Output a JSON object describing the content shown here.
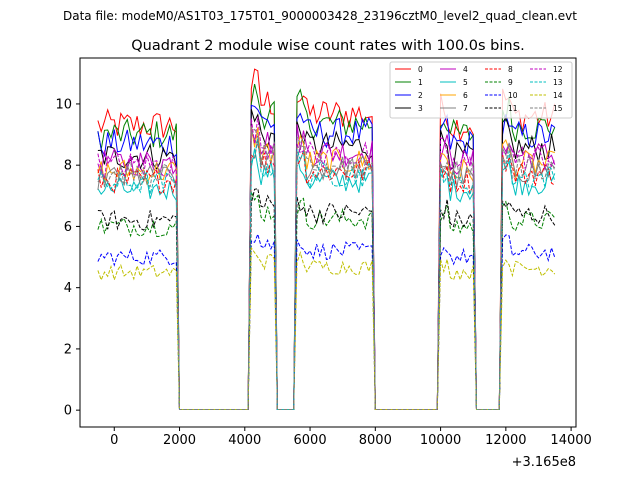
{
  "chart_data": {
    "type": "line",
    "suptitle": "Data file: modeM0/AS1T03_175T01_9000003428_23196cztM0_level2_quad_clean.evt",
    "title": "Quadrant 2 module wise count rates with 100.0s bins.",
    "xlabel": "",
    "ylabel": "",
    "x_offset_label": "+3.165e8",
    "xlim": [
      -1050,
      14150
    ],
    "ylim": [
      -0.55,
      11.5
    ],
    "xticks": [
      0,
      2000,
      4000,
      6000,
      8000,
      10000,
      12000,
      14000
    ],
    "yticks": [
      0,
      2,
      4,
      6,
      8,
      10
    ],
    "bin_seconds": 100,
    "active_segments": [
      [
        -500,
        1900
      ],
      [
        4150,
        4950
      ],
      [
        5550,
        7900
      ],
      [
        10000,
        11050
      ],
      [
        11900,
        13500
      ]
    ],
    "series": [
      {
        "name": "0",
        "color": "#ff0000",
        "style": "solid",
        "level": 9.3
      },
      {
        "name": "1",
        "color": "#008000",
        "style": "solid",
        "level": 9.0
      },
      {
        "name": "2",
        "color": "#0000ff",
        "style": "solid",
        "level": 8.7
      },
      {
        "name": "3",
        "color": "#000000",
        "style": "solid",
        "level": 8.3
      },
      {
        "name": "4",
        "color": "#bf00bf",
        "style": "solid",
        "level": 8.1
      },
      {
        "name": "5",
        "color": "#00bfbf",
        "style": "solid",
        "level": 7.2
      },
      {
        "name": "6",
        "color": "#ffa500",
        "style": "solid",
        "level": 7.8
      },
      {
        "name": "7",
        "color": "#808080",
        "style": "solid",
        "level": 7.6
      },
      {
        "name": "8",
        "color": "#ff0000",
        "style": "dashed",
        "level": 7.5
      },
      {
        "name": "9",
        "color": "#008000",
        "style": "dashed",
        "level": 6.0
      },
      {
        "name": "10",
        "color": "#0000ff",
        "style": "dashed",
        "level": 5.0
      },
      {
        "name": "11",
        "color": "#000000",
        "style": "dashed",
        "level": 6.2
      },
      {
        "name": "12",
        "color": "#bf00bf",
        "style": "dashed",
        "level": 8.0
      },
      {
        "name": "13",
        "color": "#00bfbf",
        "style": "dashed",
        "level": 7.4
      },
      {
        "name": "14",
        "color": "#bfbf00",
        "style": "dashed",
        "level": 4.5
      },
      {
        "name": "15",
        "color": "#808080",
        "style": "dashed",
        "level": 7.7
      }
    ]
  }
}
